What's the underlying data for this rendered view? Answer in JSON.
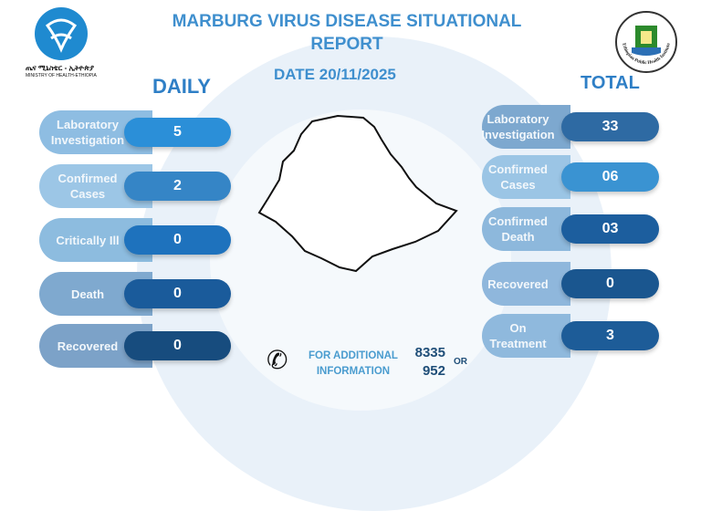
{
  "header": {
    "title_line1": "MARBURG VIRUS DISEASE SITUATIONAL",
    "title_line2": "REPORT",
    "date": "DATE 20/11/2025",
    "ministry_amharic": "ጤና ሚኒስቴር - ኢትዮጵያ",
    "ministry": "MINISTRY OF HEALTH-ETHIOPIA",
    "ephi_logo_text": "Ethiopian Public Health Institute"
  },
  "daily": {
    "heading": "DAILY",
    "items": [
      {
        "label": "Laboratory Investigation",
        "value": "5",
        "color": "#2b8fd8"
      },
      {
        "label": "Confirmed Cases",
        "value": "2",
        "color": "#3585c6"
      },
      {
        "label": "Critically Ill",
        "value": "0",
        "color": "#1e72bd"
      },
      {
        "label": "Death",
        "value": "0",
        "color": "#1a5b9b"
      },
      {
        "label": "Recovered",
        "value": "0",
        "color": "#174c7e"
      }
    ]
  },
  "total": {
    "heading": "TOTAL",
    "items": [
      {
        "label": "Laboratory Investigation",
        "value": "33",
        "color": "#2e6aa3"
      },
      {
        "label": "Confirmed Cases",
        "value": "06",
        "color": "#3a93d2"
      },
      {
        "label": "Confirmed Death",
        "value": "03",
        "color": "#1c5e9e"
      },
      {
        "label": "Recovered",
        "value": "0",
        "color": "#1a568f"
      },
      {
        "label": "On Treatment",
        "value": "3",
        "color": "#1d5c98"
      }
    ]
  },
  "contact": {
    "text_line1": "FOR ADDITIONAL",
    "text_line2": "INFORMATION",
    "number_line1": "8335",
    "number_line2": "952",
    "or": "OR",
    "icon": "phone-icon"
  }
}
